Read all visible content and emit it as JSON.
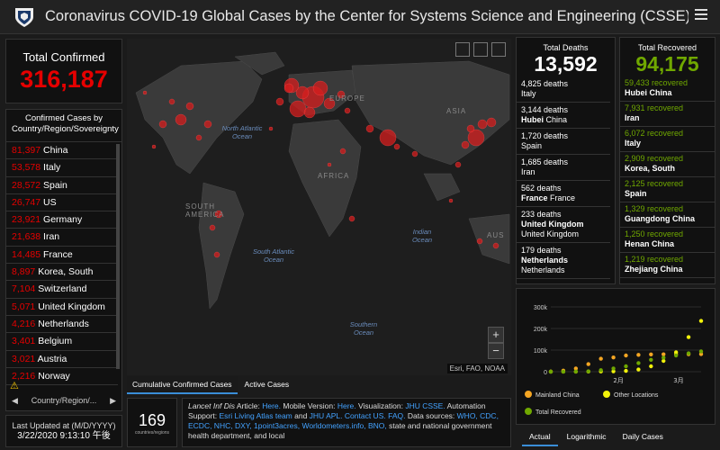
{
  "header": {
    "title": "Coronavirus COVID-19 Global Cases by the Center for Systems Science and Engineering (CSSE) at Jo..."
  },
  "total_confirmed": {
    "label": "Total Confirmed",
    "value": "316,187"
  },
  "confirmed_list": {
    "header": "Confirmed Cases by Country/Region/Sovereignty",
    "rows": [
      {
        "value": "81,397",
        "country": "China"
      },
      {
        "value": "53,578",
        "country": "Italy"
      },
      {
        "value": "28,572",
        "country": "Spain"
      },
      {
        "value": "26,747",
        "country": "US"
      },
      {
        "value": "23,921",
        "country": "Germany"
      },
      {
        "value": "21,638",
        "country": "Iran"
      },
      {
        "value": "14,485",
        "country": "France"
      },
      {
        "value": "8,897",
        "country": "Korea, South"
      },
      {
        "value": "7,104",
        "country": "Switzerland"
      },
      {
        "value": "5,071",
        "country": "United Kingdom"
      },
      {
        "value": "4,216",
        "country": "Netherlands"
      },
      {
        "value": "3,401",
        "country": "Belgium"
      },
      {
        "value": "3,021",
        "country": "Austria"
      },
      {
        "value": "2,216",
        "country": "Norway"
      }
    ],
    "nav_label": "Country/Region/..."
  },
  "last_updated": {
    "label": "Last Updated at (M/D/YYYY)",
    "value": "3/22/2020 9:13:10 午後"
  },
  "map": {
    "oceans": [
      "North Atlantic Ocean",
      "South Atlantic Ocean",
      "Indian Ocean",
      "Southern Ocean"
    ],
    "continents": [
      "EUROPE",
      "ASIA",
      "AFRICA",
      "SOUTH AMERICA",
      "AUS"
    ],
    "attribution": "Esri, FAO, NOAA",
    "zoom_in": "+",
    "zoom_out": "−",
    "tabs": [
      "Cumulative Confirmed Cases",
      "Active Cases"
    ]
  },
  "countries_count": {
    "value": "169",
    "label": "countries/regions"
  },
  "info": {
    "p1": "Lancet Inf Dis",
    "p2": " Article: ",
    "l1": "Here.",
    "p3": " Mobile Version: ",
    "l2": "Here.",
    "p4": " Visualization: ",
    "l3": "JHU CSSE.",
    "p5": " Automation Support: ",
    "l4": "Esri Living Atlas team",
    "p6": " and ",
    "l5": "JHU APL.",
    "l6": "Contact US.",
    "l7": "FAQ.",
    "p7": " Data sources: ",
    "l8": "WHO, CDC, ECDC, NHC, DXY, 1point3acres, Worldometers.info, BNO,",
    "p8": " state and national government health department, and local"
  },
  "deaths": {
    "title": "Total Deaths",
    "value": "13,592",
    "rows": [
      {
        "value": "4,825 deaths",
        "bold": "",
        "place": "Italy"
      },
      {
        "value": "3,144 deaths",
        "bold": "Hubei",
        "place": "China"
      },
      {
        "value": "1,720 deaths",
        "bold": "",
        "place": "Spain"
      },
      {
        "value": "1,685 deaths",
        "bold": "",
        "place": "Iran"
      },
      {
        "value": "562 deaths",
        "bold": "France",
        "place": "France"
      },
      {
        "value": "233 deaths",
        "bold": "United Kingdom",
        "place": "United Kingdom"
      },
      {
        "value": "179 deaths",
        "bold": "Netherlands",
        "place": "Netherlands"
      }
    ]
  },
  "recovered": {
    "title": "Total Recovered",
    "value": "94,175",
    "rows": [
      {
        "value": "59,433 recovered",
        "place": "Hubei China"
      },
      {
        "value": "7,931 recovered",
        "place": "Iran"
      },
      {
        "value": "6,072 recovered",
        "place": "Italy"
      },
      {
        "value": "2,909 recovered",
        "place": "Korea, South"
      },
      {
        "value": "2,125 recovered",
        "place": "Spain"
      },
      {
        "value": "1,329 recovered",
        "place": "Guangdong China"
      },
      {
        "value": "1,250 recovered",
        "place": "Henan China"
      },
      {
        "value": "1,219 recovered",
        "place": "Zhejiang China"
      }
    ]
  },
  "chart_data": {
    "type": "line",
    "yticks": [
      "0",
      "100k",
      "200k",
      "300k"
    ],
    "ylim": [
      0,
      300000
    ],
    "xticks": [
      "2月",
      "3月"
    ],
    "series": [
      {
        "name": "Mainland China",
        "color": "#f5a623",
        "values": [
          500,
          5000,
          15000,
          35000,
          60000,
          66000,
          75000,
          78000,
          80000,
          80500,
          81000,
          81200,
          81400
        ]
      },
      {
        "name": "Other Locations",
        "color": "#f2f20a",
        "values": [
          0,
          100,
          300,
          700,
          1200,
          2000,
          4000,
          10000,
          25000,
          50000,
          90000,
          160000,
          235000
        ]
      },
      {
        "name": "Total Recovered",
        "color": "#70a800",
        "values": [
          0,
          100,
          500,
          2000,
          7000,
          15000,
          25000,
          40000,
          55000,
          65000,
          75000,
          85000,
          94000
        ]
      }
    ],
    "tabs": [
      "Actual",
      "Logarithmic",
      "Daily Cases"
    ]
  }
}
